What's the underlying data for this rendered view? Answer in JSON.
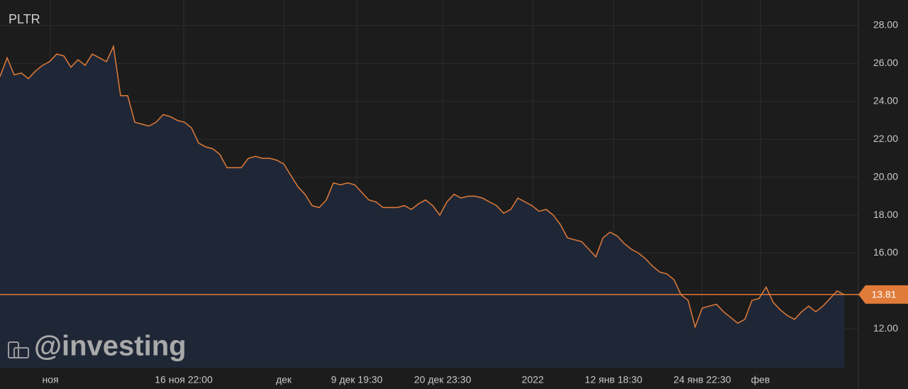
{
  "chart_data": {
    "type": "area",
    "title": "PLTR",
    "watermark": "@investing",
    "color": "#e07b39",
    "fill": "#1f2737",
    "values": [
      25.3,
      26.3,
      25.4,
      25.5,
      25.2,
      25.6,
      25.9,
      26.1,
      26.5,
      26.4,
      25.8,
      26.2,
      25.9,
      26.5,
      26.3,
      26.1,
      26.9,
      24.3,
      24.3,
      22.9,
      22.8,
      22.7,
      22.9,
      23.3,
      23.2,
      23.0,
      22.9,
      22.6,
      21.8,
      21.6,
      21.5,
      21.2,
      20.5,
      20.5,
      20.5,
      21.0,
      21.1,
      21.0,
      21.0,
      20.9,
      20.7,
      20.1,
      19.5,
      19.1,
      18.5,
      18.4,
      18.8,
      19.7,
      19.6,
      19.7,
      19.6,
      19.2,
      18.8,
      18.7,
      18.4,
      18.4,
      18.4,
      18.5,
      18.3,
      18.6,
      18.8,
      18.5,
      18.0,
      18.7,
      19.1,
      18.9,
      19.0,
      19.0,
      18.9,
      18.7,
      18.5,
      18.1,
      18.3,
      18.9,
      18.7,
      18.5,
      18.2,
      18.3,
      18.0,
      17.5,
      16.8,
      16.7,
      16.6,
      16.2,
      15.8,
      16.8,
      17.1,
      16.9,
      16.5,
      16.2,
      16.0,
      15.7,
      15.3,
      15.0,
      14.9,
      14.6,
      13.8,
      13.5,
      12.1,
      13.1,
      13.2,
      13.3,
      12.9,
      12.6,
      12.3,
      12.5,
      13.5,
      13.6,
      14.2,
      13.4,
      13.0,
      12.7,
      12.5,
      12.9,
      13.2,
      12.9,
      13.2,
      13.6,
      14.0,
      13.81
    ],
    "last_price": 13.81,
    "xlim": [
      0,
      119.3
    ],
    "xticks": [
      {
        "value": 7.1,
        "label": "ноя"
      },
      {
        "value": 25.9,
        "label": "16 ноя 22:00"
      },
      {
        "value": 40,
        "label": "дек"
      },
      {
        "value": 50.3,
        "label": "9 дек 19:30"
      },
      {
        "value": 62.4,
        "label": "20 дек 23:30"
      },
      {
        "value": 75.1,
        "label": "2022"
      },
      {
        "value": 86.5,
        "label": "12 янв 18:30"
      },
      {
        "value": 99,
        "label": "24 янв 22:30"
      },
      {
        "value": 107.2,
        "label": "фев"
      }
    ],
    "ylim": [
      9.95,
      29.35
    ],
    "yticks": [
      {
        "value": 12,
        "label": "12.00"
      },
      {
        "value": 14,
        "label": "14.00"
      },
      {
        "value": 16,
        "label": "16.00"
      },
      {
        "value": 18,
        "label": "18.00"
      },
      {
        "value": 20,
        "label": "20.00"
      },
      {
        "value": 22,
        "label": "22.00"
      },
      {
        "value": 24,
        "label": "24.00"
      },
      {
        "value": 26,
        "label": "26.00"
      },
      {
        "value": 28,
        "label": "28.00"
      }
    ],
    "grid": true
  }
}
